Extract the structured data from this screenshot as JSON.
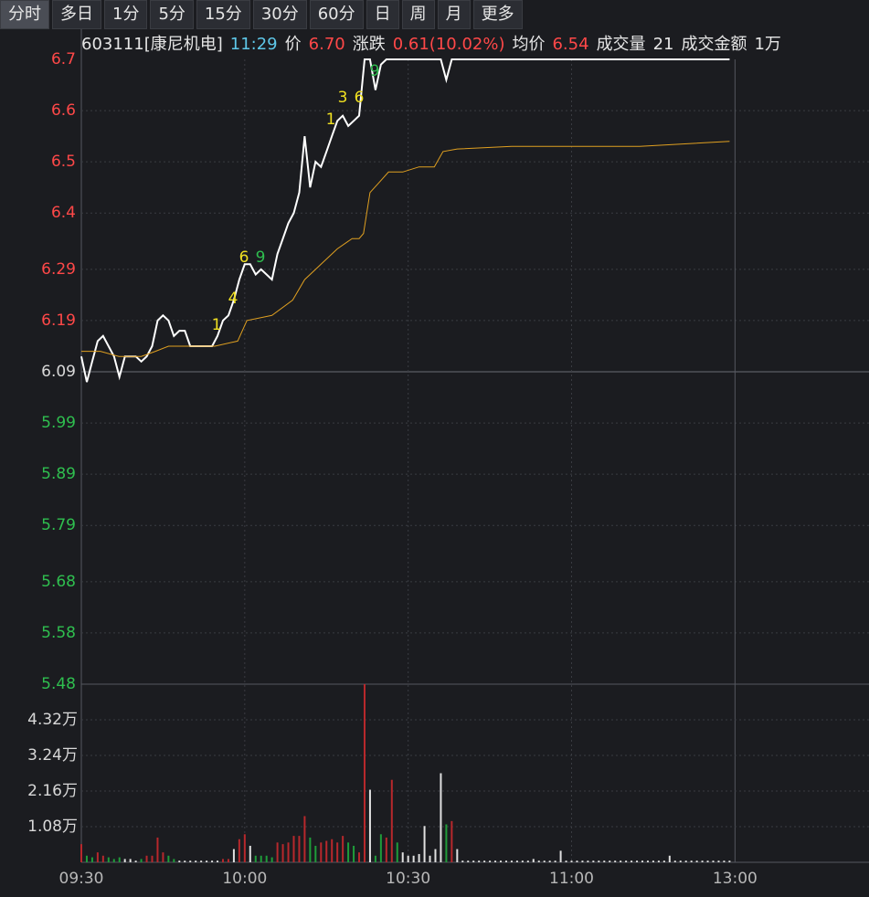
{
  "tabs": [
    "分时",
    "多日",
    "1分",
    "5分",
    "15分",
    "30分",
    "60分",
    "日",
    "周",
    "月",
    "更多"
  ],
  "info": {
    "stock": "603111[康尼机电]",
    "time": "11:29",
    "price_label": "价",
    "price": "6.70",
    "change_label": "涨跌",
    "change": "0.61(10.02%)",
    "avg_label": "均价",
    "avg": "6.54",
    "volume_label": "成交量",
    "volume": "21",
    "amount_label": "成交金额",
    "amount": "1万"
  },
  "chart_data": [
    {
      "type": "line",
      "base": 6.09,
      "up_color": "#ff4848",
      "down_color": "#2fbf4f",
      "flat_color": "#d8d8d8",
      "ylim": [
        5.48,
        6.7
      ],
      "yticks": [
        6.7,
        6.6,
        6.5,
        6.4,
        6.29,
        6.19,
        6.09,
        5.99,
        5.89,
        5.79,
        5.68,
        5.58,
        5.48
      ],
      "xlim": [
        0,
        144.6
      ],
      "grid": true,
      "series": [
        {
          "color": "#ffffff",
          "x": [
            0,
            1,
            2,
            3,
            4,
            5,
            6,
            7,
            8,
            9,
            10,
            11,
            12,
            13,
            14,
            15,
            16,
            17,
            18,
            19,
            20,
            24,
            25,
            26,
            27,
            28,
            29,
            30,
            31,
            32,
            33,
            34,
            35,
            36,
            37,
            38,
            39,
            40,
            41,
            42,
            43,
            44,
            45,
            46,
            47,
            48,
            49,
            50,
            51,
            52,
            53,
            54,
            55,
            56,
            66,
            67,
            68,
            119
          ],
          "values": [
            6.12,
            6.07,
            6.11,
            6.15,
            6.16,
            6.14,
            6.12,
            6.08,
            6.12,
            6.12,
            6.12,
            6.11,
            6.12,
            6.14,
            6.19,
            6.2,
            6.19,
            6.16,
            6.17,
            6.17,
            6.14,
            6.14,
            6.16,
            6.19,
            6.2,
            6.23,
            6.27,
            6.3,
            6.3,
            6.28,
            6.29,
            6.28,
            6.27,
            6.32,
            6.35,
            6.38,
            6.4,
            6.44,
            6.55,
            6.45,
            6.5,
            6.49,
            6.52,
            6.55,
            6.58,
            6.59,
            6.57,
            6.58,
            6.59,
            6.7,
            6.7,
            6.64,
            6.69,
            6.7,
            6.7,
            6.66,
            6.7,
            6.7
          ]
        },
        {
          "color": "#e0a020",
          "x": [
            0,
            3.5,
            6.9,
            11,
            13.6,
            16,
            24.5,
            28.7,
            30.4,
            35,
            38.8,
            41,
            44,
            47,
            49.7,
            51,
            51.8,
            53,
            54.7,
            56.4,
            59,
            62,
            64.8,
            66.4,
            69,
            79,
            102.5,
            119
          ],
          "values": [
            6.13,
            6.13,
            6.12,
            6.12,
            6.13,
            6.14,
            6.14,
            6.15,
            6.19,
            6.2,
            6.23,
            6.27,
            6.3,
            6.33,
            6.35,
            6.35,
            6.36,
            6.44,
            6.46,
            6.48,
            6.48,
            6.49,
            6.49,
            6.52,
            6.525,
            6.53,
            6.53,
            6.54
          ]
        }
      ],
      "annotations": [
        {
          "text": "1",
          "color": "#f0e020"
        },
        {
          "text": "4",
          "color": "#f0e020"
        },
        {
          "text": "6",
          "color": "#f0e020"
        },
        {
          "text": "9",
          "color": "#2fbf4f"
        },
        {
          "text": "1",
          "color": "#f0e020"
        },
        {
          "text": "3",
          "color": "#f0e020"
        },
        {
          "text": "6",
          "color": "#f0e020"
        },
        {
          "text": "9",
          "color": "#2fbf4f"
        }
      ]
    },
    {
      "type": "bar",
      "ylim": [
        0,
        5.4
      ],
      "xlim": [
        0,
        144.6
      ],
      "yticks": [
        {
          "value": 4.32,
          "label": "4.32万"
        },
        {
          "value": 3.24,
          "label": "3.24万"
        },
        {
          "value": 2.16,
          "label": "2.16万"
        },
        {
          "value": 1.08,
          "label": "1.08万"
        }
      ],
      "xticks": [
        {
          "value": 0,
          "label": "09:30"
        },
        {
          "value": 30,
          "label": "10:00"
        },
        {
          "value": 60,
          "label": "10:30"
        },
        {
          "value": 90,
          "label": "11:00"
        },
        {
          "value": 120,
          "label": "13:00"
        }
      ],
      "values": [
        0.55,
        0.2,
        0.15,
        0.3,
        0.2,
        0.15,
        0.1,
        0.15,
        0.1,
        0.1,
        0.05,
        0.1,
        0.2,
        0.2,
        0.75,
        0.3,
        0.2,
        0.1,
        0.05,
        0.05,
        0.05,
        0.05,
        0.05,
        0.05,
        0.05,
        0.05,
        0.1,
        0.1,
        0.4,
        0.7,
        0.85,
        0.5,
        0.2,
        0.2,
        0.2,
        0.15,
        0.6,
        0.55,
        0.6,
        0.8,
        0.8,
        1.4,
        0.75,
        0.5,
        0.6,
        0.65,
        0.7,
        0.6,
        0.8,
        0.6,
        0.5,
        0.3,
        5.4,
        2.2,
        0.2,
        0.85,
        0.75,
        2.5,
        0.6,
        0.3,
        0.2,
        0.2,
        0.25,
        1.1,
        0.2,
        0.4,
        2.7,
        1.15,
        1.25,
        0.4,
        0.05,
        0.05,
        0.05,
        0.05,
        0.05,
        0.05,
        0.05,
        0.05,
        0.05,
        0.05,
        0.05,
        0.05,
        0.05,
        0.1,
        0.05,
        0.05,
        0.05,
        0.05,
        0.35,
        0.05,
        0.05,
        0.05,
        0.05,
        0.05,
        0.05,
        0.05,
        0.05,
        0.05,
        0.05,
        0.05,
        0.05,
        0.05,
        0.05,
        0.05,
        0.05,
        0.05,
        0.05,
        0.05,
        0.2,
        0.05,
        0.05,
        0.05,
        0.05,
        0.05,
        0.05,
        0.05,
        0.05,
        0.05,
        0.05,
        0.05
      ],
      "colors": [
        "#b8282c",
        "#1f9d3a",
        "#1f9d3a",
        "#b8282c",
        "#b8282c",
        "#1f9d3a",
        "#1f9d3a",
        "#1f9d3a",
        "#e0e0e0",
        "#e0e0e0",
        "#e0e0e0",
        "#1f9d3a",
        "#b8282c",
        "#b8282c",
        "#b8282c",
        "#b8282c",
        "#1f9d3a",
        "#1f9d3a",
        "#e0e0e0",
        "#e0e0e0",
        "#e0e0e0",
        "#e0e0e0",
        "#e0e0e0",
        "#e0e0e0",
        "#e0e0e0",
        "#e0e0e0",
        "#b8282c",
        "#b8282c",
        "#e0e0e0",
        "#b8282c",
        "#b8282c",
        "#e0e0e0",
        "#1f9d3a",
        "#1f9d3a",
        "#1f9d3a",
        "#1f9d3a",
        "#b8282c",
        "#b8282c",
        "#b8282c",
        "#b8282c",
        "#b8282c",
        "#b8282c",
        "#1f9d3a",
        "#1f9d3a",
        "#b8282c",
        "#b8282c",
        "#b8282c",
        "#b8282c",
        "#b8282c",
        "#1f9d3a",
        "#1f9d3a",
        "#b8282c",
        "#b8282c",
        "#e0e0e0",
        "#1f9d3a",
        "#1f9d3a",
        "#b8282c",
        "#b8282c",
        "#1f9d3a",
        "#e0e0e0",
        "#e0e0e0",
        "#e0e0e0",
        "#e0e0e0",
        "#e0e0e0",
        "#e0e0e0",
        "#e0e0e0",
        "#e0e0e0",
        "#1f9d3a",
        "#b8282c",
        "#e0e0e0",
        "#e0e0e0",
        "#e0e0e0",
        "#e0e0e0",
        "#e0e0e0",
        "#e0e0e0",
        "#e0e0e0",
        "#e0e0e0",
        "#e0e0e0",
        "#e0e0e0",
        "#e0e0e0",
        "#e0e0e0",
        "#e0e0e0",
        "#e0e0e0",
        "#e0e0e0",
        "#e0e0e0",
        "#e0e0e0",
        "#e0e0e0",
        "#e0e0e0",
        "#e0e0e0",
        "#e0e0e0",
        "#e0e0e0",
        "#e0e0e0",
        "#e0e0e0",
        "#e0e0e0",
        "#e0e0e0",
        "#e0e0e0",
        "#e0e0e0",
        "#e0e0e0",
        "#e0e0e0",
        "#e0e0e0",
        "#e0e0e0",
        "#e0e0e0",
        "#e0e0e0",
        "#e0e0e0",
        "#e0e0e0",
        "#e0e0e0",
        "#e0e0e0",
        "#e0e0e0",
        "#e0e0e0",
        "#e0e0e0",
        "#e0e0e0",
        "#e0e0e0",
        "#e0e0e0",
        "#e0e0e0",
        "#e0e0e0",
        "#e0e0e0",
        "#e0e0e0",
        "#e0e0e0",
        "#e0e0e0",
        "#e0e0e0"
      ]
    }
  ]
}
